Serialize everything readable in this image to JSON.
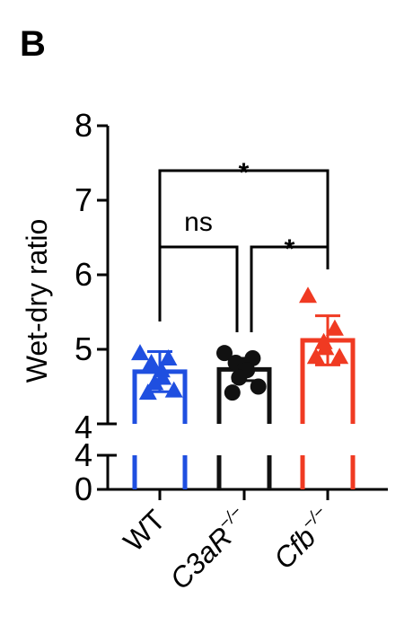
{
  "panel_label": "B",
  "colors": {
    "WT": "#1f4fe0",
    "C3aR": "#111111",
    "Cfb": "#f03a22",
    "axis": "#000000"
  },
  "chart_data": {
    "type": "bar",
    "ylabel": "Wet-dry ratio",
    "xlabel": "",
    "ylim_main": [
      4,
      8
    ],
    "ylim_lower": [
      0,
      4
    ],
    "yticks_main": [
      "8",
      "7",
      "6",
      "5",
      "4"
    ],
    "yticks_lower": [
      "4",
      "0"
    ],
    "categories": [
      {
        "base": "WT",
        "sup": ""
      },
      {
        "base": "C3aR",
        "sup": "−/−"
      },
      {
        "base": "Cfb",
        "sup": "−/−"
      }
    ],
    "bars": [
      {
        "mean": 4.7,
        "sd": 0.27,
        "points": [
          4.95,
          4.88,
          4.82,
          4.72,
          4.62,
          4.55,
          4.45,
          4.42
        ]
      },
      {
        "mean": 4.73,
        "sd": 0.15,
        "points": [
          4.95,
          4.88,
          4.82,
          4.78,
          4.72,
          4.62,
          4.5,
          4.42
        ]
      },
      {
        "mean": 5.12,
        "sd": 0.33,
        "points": [
          5.72,
          5.28,
          5.1,
          5.02,
          4.9,
          4.9
        ]
      }
    ],
    "significance": [
      {
        "from": 0,
        "to": 1,
        "label": "ns"
      },
      {
        "from": 1,
        "to": 2,
        "label": "*"
      },
      {
        "from": 0,
        "to": 2,
        "label": "*"
      }
    ]
  }
}
